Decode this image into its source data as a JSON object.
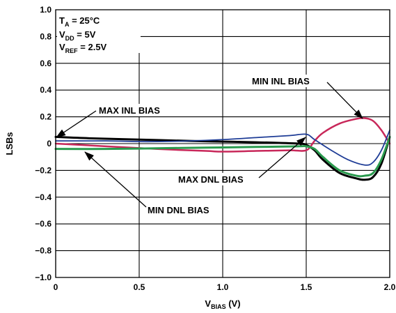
{
  "chart_data": {
    "type": "line",
    "xlabel_main": "V",
    "xlabel_sub": "BIAS",
    "xlabel_unit": " (V)",
    "ylabel": "LSBs",
    "xlim": [
      0,
      2.0
    ],
    "ylim": [
      -1.0,
      1.0
    ],
    "x_ticks": [
      0,
      0.5,
      1.0,
      1.5,
      2.0
    ],
    "x_tick_labels": [
      "0",
      "0.5",
      "1.0",
      "1.5",
      "2.0"
    ],
    "y_ticks": [
      1.0,
      0.8,
      0.6,
      0.4,
      0.2,
      0,
      -0.2,
      -0.4,
      -0.6,
      -0.8,
      -1.0
    ],
    "y_tick_labels": [
      "1.0",
      "0.8",
      "0.6",
      "0.4",
      "0.2",
      "0",
      "−0.2",
      "−0.4",
      "−0.6",
      "−0.8",
      "−1.0"
    ],
    "grid": true,
    "conditions": [
      {
        "main": "T",
        "sub": "A",
        "rest": " = 25°C"
      },
      {
        "main": "V",
        "sub": "DD",
        "rest": " = 5V"
      },
      {
        "main": "V",
        "sub": "REF",
        "rest": " = 2.5V"
      }
    ],
    "series": [
      {
        "name": "MAX INL BIAS",
        "color": "#000000",
        "width": 3,
        "x": [
          0,
          0.2,
          0.5,
          0.8,
          1.0,
          1.2,
          1.45,
          1.5,
          1.55,
          1.6,
          1.7,
          1.8,
          1.85,
          1.9,
          1.95,
          2.0
        ],
        "y": [
          0.05,
          0.04,
          0.03,
          0.02,
          0.015,
          0.01,
          0.0,
          -0.01,
          -0.05,
          -0.12,
          -0.22,
          -0.26,
          -0.27,
          -0.25,
          -0.15,
          0.05
        ]
      },
      {
        "name": "MIN INL BIAS",
        "color": "#c8285a",
        "width": 2.5,
        "x": [
          0,
          0.3,
          0.6,
          0.9,
          1.0,
          1.2,
          1.4,
          1.5,
          1.55,
          1.6,
          1.7,
          1.8,
          1.85,
          1.9,
          1.95,
          2.0
        ],
        "y": [
          0.0,
          -0.02,
          -0.04,
          -0.055,
          -0.06,
          -0.055,
          -0.05,
          -0.05,
          0.02,
          0.08,
          0.15,
          0.185,
          0.19,
          0.17,
          0.1,
          0.0
        ]
      },
      {
        "name": "MAX DNL BIAS",
        "color": "#1e3c96",
        "width": 1.8,
        "x": [
          0,
          0.3,
          0.5,
          0.6,
          0.8,
          1.0,
          1.2,
          1.4,
          1.5,
          1.55,
          1.65,
          1.75,
          1.85,
          1.9,
          1.95,
          2.0
        ],
        "y": [
          0.02,
          0.02,
          0.015,
          0.015,
          0.02,
          0.03,
          0.045,
          0.06,
          0.07,
          0.03,
          -0.05,
          -0.12,
          -0.16,
          -0.14,
          -0.05,
          0.1
        ]
      },
      {
        "name": "MIN DNL BIAS",
        "color": "#2a9a4e",
        "width": 3,
        "x": [
          0,
          0.3,
          0.6,
          0.9,
          1.2,
          1.45,
          1.5,
          1.55,
          1.6,
          1.7,
          1.8,
          1.85,
          1.9,
          1.95,
          2.0
        ],
        "y": [
          -0.04,
          -0.04,
          -0.035,
          -0.03,
          -0.025,
          -0.02,
          -0.02,
          -0.04,
          -0.1,
          -0.2,
          -0.24,
          -0.24,
          -0.22,
          -0.12,
          0.05
        ]
      }
    ],
    "annotations": [
      {
        "text": "MAX INL BIAS",
        "series": "MAX INL BIAS"
      },
      {
        "text": "MIN INL BIAS",
        "series": "MIN INL BIAS"
      },
      {
        "text": "MAX DNL BIAS",
        "series": "MAX DNL BIAS"
      },
      {
        "text": "MIN DNL BIAS",
        "series": "MIN DNL BIAS"
      }
    ]
  }
}
